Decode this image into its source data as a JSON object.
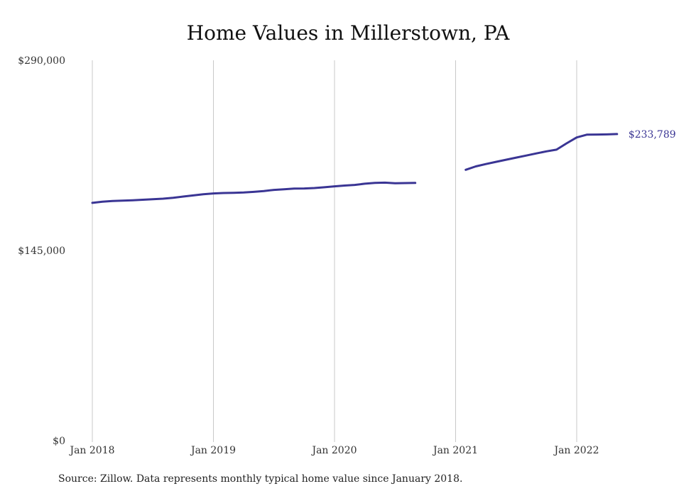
{
  "chart_data": {
    "type": "line",
    "title": "Home Values in Millerstown, PA",
    "xlabel": "",
    "ylabel": "",
    "ylim": [
      0,
      290000
    ],
    "y_ticks": [
      "$290,000",
      "$145,000",
      "$0"
    ],
    "y_tick_values": [
      290000,
      145000,
      0
    ],
    "x_ticks": [
      "Jan 2018",
      "Jan 2019",
      "Jan 2020",
      "Jan 2021",
      "Jan 2022"
    ],
    "x_tick_dates": [
      "2018-01",
      "2019-01",
      "2020-01",
      "2021-01",
      "2022-01"
    ],
    "grid": "vertical",
    "line_color": "#3a3594",
    "series": [
      {
        "segments": [
          [
            [
              "2018-01",
              181300
            ],
            [
              "2018-02",
              182200
            ],
            [
              "2018-03",
              182700
            ],
            [
              "2018-04",
              183000
            ],
            [
              "2018-05",
              183300
            ],
            [
              "2018-06",
              183700
            ],
            [
              "2018-07",
              184100
            ],
            [
              "2018-08",
              184500
            ],
            [
              "2018-09",
              185200
            ],
            [
              "2018-10",
              186100
            ],
            [
              "2018-11",
              187000
            ],
            [
              "2018-12",
              187900
            ],
            [
              "2019-01",
              188500
            ],
            [
              "2019-02",
              188800
            ],
            [
              "2019-03",
              189000
            ],
            [
              "2019-04",
              189200
            ],
            [
              "2019-05",
              189700
            ],
            [
              "2019-06",
              190300
            ],
            [
              "2019-07",
              191200
            ],
            [
              "2019-08",
              191700
            ],
            [
              "2019-09",
              192200
            ],
            [
              "2019-10",
              192300
            ],
            [
              "2019-11",
              192600
            ],
            [
              "2019-12",
              193200
            ],
            [
              "2020-01",
              193900
            ],
            [
              "2020-02",
              194500
            ],
            [
              "2020-03",
              195000
            ],
            [
              "2020-04",
              195900
            ],
            [
              "2020-05",
              196500
            ],
            [
              "2020-06",
              196700
            ],
            [
              "2020-07",
              196300
            ],
            [
              "2020-08",
              196400
            ],
            [
              "2020-09",
              196500
            ]
          ],
          [
            [
              "2021-02",
              206500
            ],
            [
              "2021-03",
              209100
            ],
            [
              "2021-04",
              210900
            ],
            [
              "2021-05",
              212600
            ],
            [
              "2021-06",
              214200
            ],
            [
              "2021-07",
              215800
            ],
            [
              "2021-08",
              217400
            ],
            [
              "2021-09",
              219000
            ],
            [
              "2021-10",
              220600
            ],
            [
              "2021-11",
              221900
            ],
            [
              "2021-12",
              226700
            ],
            [
              "2022-01",
              231200
            ],
            [
              "2022-02",
              233300
            ],
            [
              "2022-03",
              233400
            ],
            [
              "2022-04",
              233500
            ],
            [
              "2022-05",
              233789
            ]
          ]
        ]
      }
    ],
    "annotations": [
      {
        "date": "2022-05",
        "value": 233789,
        "text": "$233,789"
      }
    ]
  },
  "source_note": "Source: Zillow. Data represents monthly typical home value since January 2018."
}
